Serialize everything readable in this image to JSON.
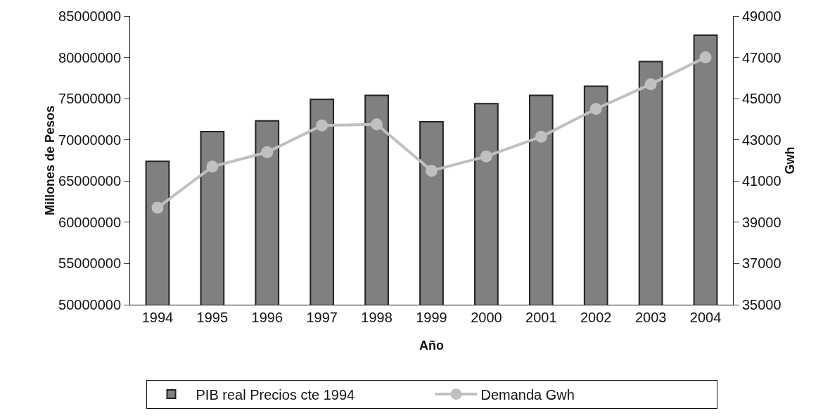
{
  "chart_data": {
    "type": "bar",
    "xlabel": "Año",
    "ylabel": "Millones de Pesos",
    "y2label": "Gwh",
    "categories": [
      "1994",
      "1995",
      "1996",
      "1997",
      "1998",
      "1999",
      "2000",
      "2001",
      "2002",
      "2003",
      "2004"
    ],
    "series": [
      {
        "name": "PIB real Precios cte 1994",
        "color": "#808080",
        "values": [
          67400000,
          71000000,
          72300000,
          74900000,
          75400000,
          72200000,
          74400000,
          75400000,
          76500000,
          79500000,
          82700000
        ]
      },
      {
        "name": "Demanda Gwh",
        "type": "line",
        "axis": "y2",
        "color": "#c0c0c0",
        "values": [
          39700,
          41700,
          42400,
          43700,
          43750,
          41500,
          42200,
          43150,
          44500,
          45700,
          47000
        ]
      }
    ],
    "ylim": [
      50000000,
      85000000
    ],
    "yticks": [
      50000000,
      55000000,
      60000000,
      65000000,
      70000000,
      75000000,
      80000000,
      85000000
    ],
    "y2lim": [
      35000,
      49000
    ],
    "y2ticks": [
      35000,
      37000,
      39000,
      41000,
      43000,
      45000,
      47000,
      49000
    ],
    "grid": false,
    "legend": "bottom",
    "marker": "circle",
    "line_style": "solid"
  }
}
